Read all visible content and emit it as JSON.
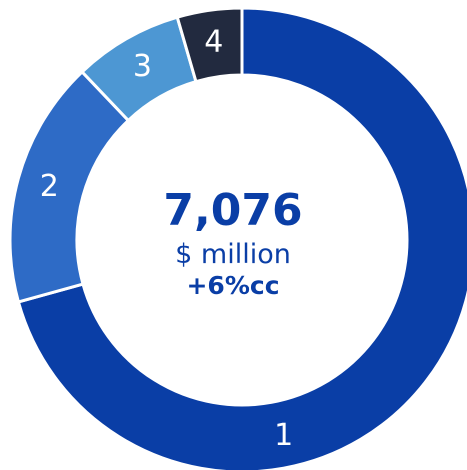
{
  "chart_data": {
    "type": "pie",
    "donut": true,
    "categories": [
      "1",
      "2",
      "3",
      "4"
    ],
    "values": [
      70.7,
      17.2,
      7.6,
      4.5
    ],
    "colors": [
      "#0a3ea6",
      "#2e6bc6",
      "#4d97d3",
      "#222a3f"
    ],
    "center": {
      "value": "7,076",
      "unit": "$ million",
      "change": "+6%cc"
    },
    "label_color": "#ffffff"
  }
}
